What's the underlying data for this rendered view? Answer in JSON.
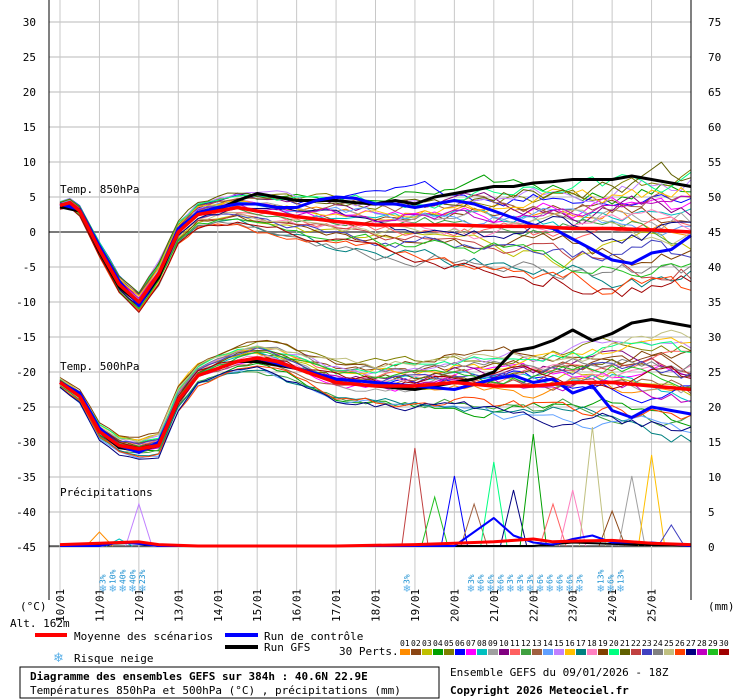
{
  "chart_data": {
    "type": "line",
    "left_axis": {
      "unit": "(°C)",
      "ticks": [
        30,
        25,
        20,
        15,
        10,
        5,
        0,
        -5,
        -10,
        -15,
        -20,
        -25,
        -30,
        -35,
        -40,
        -45
      ]
    },
    "right_axis": {
      "unit": "(mm)",
      "ticks": [
        75,
        70,
        65,
        60,
        55,
        50,
        45,
        40,
        35,
        30,
        25,
        20,
        15,
        10,
        5,
        0
      ]
    },
    "x_labels": [
      "10/01",
      "11/01",
      "12/01",
      "13/01",
      "14/01",
      "15/01",
      "16/01",
      "17/01",
      "18/01",
      "19/01",
      "20/01",
      "21/01",
      "22/01",
      "23/01",
      "24/01",
      "25/01"
    ],
    "altitude": "Alt. 162m",
    "annotations": {
      "t850": "Temp. 850hPa",
      "t500": "Temp. 500hPa",
      "precip": "Précipitations"
    },
    "series_850": {
      "mean": [
        [
          0,
          3.8
        ],
        [
          6,
          4.2
        ],
        [
          12,
          3.0
        ],
        [
          24,
          -2.5
        ],
        [
          36,
          -7.5
        ],
        [
          48,
          -10.0
        ],
        [
          60,
          -6.0
        ],
        [
          72,
          0.0
        ],
        [
          84,
          2.5
        ],
        [
          96,
          3.0
        ],
        [
          108,
          3.5
        ],
        [
          120,
          3.0
        ],
        [
          144,
          2.2
        ],
        [
          168,
          1.5
        ],
        [
          192,
          1.0
        ],
        [
          216,
          1.0
        ],
        [
          240,
          1.0
        ],
        [
          264,
          0.8
        ],
        [
          288,
          0.8
        ],
        [
          312,
          0.5
        ],
        [
          336,
          0.5
        ],
        [
          360,
          0.3
        ],
        [
          384,
          0.0
        ]
      ],
      "control": [
        [
          0,
          4.0
        ],
        [
          12,
          3.2
        ],
        [
          24,
          -2.0
        ],
        [
          36,
          -7.0
        ],
        [
          48,
          -10.5
        ],
        [
          60,
          -6.0
        ],
        [
          72,
          0.5
        ],
        [
          84,
          2.8
        ],
        [
          96,
          3.5
        ],
        [
          108,
          4.0
        ],
        [
          120,
          4.0
        ],
        [
          132,
          3.5
        ],
        [
          144,
          3.5
        ],
        [
          156,
          4.5
        ],
        [
          168,
          5.0
        ],
        [
          180,
          4.8
        ],
        [
          192,
          4.0
        ],
        [
          204,
          4.0
        ],
        [
          216,
          3.5
        ],
        [
          228,
          4.0
        ],
        [
          240,
          4.5
        ],
        [
          252,
          4.0
        ],
        [
          264,
          3.0
        ],
        [
          276,
          2.0
        ],
        [
          288,
          1.0
        ],
        [
          300,
          0.5
        ],
        [
          312,
          -1.0
        ],
        [
          324,
          -2.5
        ],
        [
          336,
          -4.0
        ],
        [
          348,
          -4.5
        ],
        [
          360,
          -3.0
        ],
        [
          372,
          -2.5
        ],
        [
          384,
          -0.5
        ]
      ],
      "gfs": [
        [
          0,
          3.6
        ],
        [
          12,
          3.0
        ],
        [
          24,
          -2.8
        ],
        [
          36,
          -7.8
        ],
        [
          48,
          -10.2
        ],
        [
          60,
          -6.5
        ],
        [
          72,
          0.2
        ],
        [
          84,
          2.6
        ],
        [
          96,
          3.2
        ],
        [
          108,
          4.5
        ],
        [
          120,
          5.5
        ],
        [
          132,
          5.0
        ],
        [
          144,
          4.5
        ],
        [
          156,
          4.5
        ],
        [
          168,
          4.5
        ],
        [
          180,
          4.2
        ],
        [
          192,
          4.0
        ],
        [
          204,
          4.5
        ],
        [
          216,
          4.0
        ],
        [
          228,
          5.0
        ],
        [
          240,
          5.5
        ],
        [
          252,
          6.0
        ],
        [
          264,
          6.5
        ],
        [
          276,
          6.5
        ],
        [
          288,
          7.0
        ],
        [
          300,
          7.2
        ],
        [
          312,
          7.5
        ],
        [
          324,
          7.5
        ],
        [
          336,
          7.5
        ],
        [
          348,
          8.0
        ],
        [
          360,
          7.5
        ],
        [
          372,
          7.0
        ],
        [
          384,
          6.5
        ]
      ]
    },
    "series_500": {
      "mean": [
        [
          0,
          -21.5
        ],
        [
          12,
          -23.5
        ],
        [
          24,
          -28.5
        ],
        [
          36,
          -30.5
        ],
        [
          48,
          -31.0
        ],
        [
          60,
          -30.5
        ],
        [
          72,
          -24.0
        ],
        [
          84,
          -20.5
        ],
        [
          96,
          -19.5
        ],
        [
          108,
          -18.5
        ],
        [
          120,
          -18.0
        ],
        [
          132,
          -18.5
        ],
        [
          144,
          -19.5
        ],
        [
          168,
          -21.5
        ],
        [
          192,
          -22.0
        ],
        [
          216,
          -22.0
        ],
        [
          240,
          -21.5
        ],
        [
          264,
          -22.0
        ],
        [
          288,
          -22.0
        ],
        [
          312,
          -21.5
        ],
        [
          336,
          -21.5
        ],
        [
          360,
          -22.0
        ],
        [
          384,
          -22.5
        ]
      ],
      "control": [
        [
          0,
          -21.5
        ],
        [
          12,
          -23.0
        ],
        [
          24,
          -28.0
        ],
        [
          36,
          -30.5
        ],
        [
          48,
          -31.5
        ],
        [
          60,
          -30.0
        ],
        [
          72,
          -24.0
        ],
        [
          84,
          -20.5
        ],
        [
          96,
          -19.5
        ],
        [
          108,
          -18.5
        ],
        [
          120,
          -18.0
        ],
        [
          144,
          -19.5
        ],
        [
          168,
          -21.0
        ],
        [
          192,
          -21.5
        ],
        [
          216,
          -22.0
        ],
        [
          240,
          -22.5
        ],
        [
          264,
          -21.0
        ],
        [
          276,
          -20.5
        ],
        [
          288,
          -21.5
        ],
        [
          300,
          -21.0
        ],
        [
          312,
          -23.0
        ],
        [
          324,
          -22.0
        ],
        [
          336,
          -25.5
        ],
        [
          348,
          -26.5
        ],
        [
          360,
          -25.0
        ],
        [
          372,
          -25.5
        ],
        [
          384,
          -26.0
        ]
      ],
      "gfs": [
        [
          0,
          -21.5
        ],
        [
          12,
          -23.2
        ],
        [
          24,
          -28.5
        ],
        [
          36,
          -30.8
        ],
        [
          48,
          -31.2
        ],
        [
          60,
          -30.5
        ],
        [
          72,
          -24.2
        ],
        [
          84,
          -20.5
        ],
        [
          96,
          -19.5
        ],
        [
          108,
          -18.5
        ],
        [
          120,
          -18.5
        ],
        [
          144,
          -19.5
        ],
        [
          168,
          -21.5
        ],
        [
          192,
          -22.0
        ],
        [
          216,
          -22.5
        ],
        [
          240,
          -21.5
        ],
        [
          252,
          -21.0
        ],
        [
          264,
          -20.0
        ],
        [
          276,
          -17.0
        ],
        [
          288,
          -16.5
        ],
        [
          300,
          -15.5
        ],
        [
          312,
          -14.0
        ],
        [
          324,
          -15.5
        ],
        [
          336,
          -14.5
        ],
        [
          348,
          -13.0
        ],
        [
          360,
          -12.5
        ],
        [
          372,
          -13.0
        ],
        [
          384,
          -13.5
        ]
      ]
    },
    "precip_mm": {
      "mean": [
        [
          0,
          0.2
        ],
        [
          24,
          0.4
        ],
        [
          36,
          0.5
        ],
        [
          48,
          0.6
        ],
        [
          60,
          0.2
        ],
        [
          84,
          0.0
        ],
        [
          168,
          0.0
        ],
        [
          216,
          0.2
        ],
        [
          240,
          0.4
        ],
        [
          264,
          0.6
        ],
        [
          276,
          0.8
        ],
        [
          288,
          1.0
        ],
        [
          300,
          0.6
        ],
        [
          312,
          0.7
        ],
        [
          336,
          0.8
        ],
        [
          360,
          0.4
        ],
        [
          384,
          0.2
        ]
      ],
      "control": [
        [
          0,
          0.0
        ],
        [
          24,
          0.0
        ],
        [
          36,
          0.5
        ],
        [
          48,
          0.3
        ],
        [
          60,
          0.0
        ],
        [
          240,
          0.0
        ],
        [
          252,
          2.0
        ],
        [
          264,
          4.0
        ],
        [
          276,
          1.5
        ],
        [
          288,
          0.5
        ],
        [
          300,
          0.2
        ],
        [
          312,
          1.0
        ],
        [
          324,
          1.5
        ],
        [
          336,
          0.5
        ],
        [
          360,
          0.5
        ],
        [
          384,
          0.0
        ]
      ],
      "gfs": [
        [
          0,
          0.0
        ],
        [
          48,
          0.5
        ],
        [
          60,
          0.0
        ],
        [
          288,
          0.0
        ],
        [
          312,
          0.5
        ],
        [
          336,
          0.3
        ],
        [
          384,
          0.0
        ]
      ]
    },
    "snow_risk": [
      {
        "day": "11/01",
        "labels": [
          "3%",
          "10%",
          "40%",
          "40%",
          "23%"
        ]
      },
      {
        "day": "19/01",
        "labels": [
          "3%"
        ]
      },
      {
        "day": "21/01",
        "labels": [
          "3%",
          "6%",
          "6%",
          "6%",
          "3%",
          "3%",
          "3%",
          "6%",
          "6%",
          "6%",
          "6%",
          "3%"
        ]
      },
      {
        "day": "24/01",
        "labels": [
          "13%",
          "6%",
          "13%"
        ]
      }
    ]
  },
  "legend": {
    "mean": "Moyenne des scénarios",
    "control": "Run de contrôle",
    "gfs": "Run GFS",
    "snow": "Risque neige",
    "perts_label": "30 Perts.",
    "perts_numbers": [
      "01",
      "02",
      "03",
      "04",
      "05",
      "06",
      "07",
      "08",
      "09",
      "10",
      "11",
      "12",
      "13",
      "14",
      "15",
      "16",
      "17",
      "18",
      "19",
      "20",
      "21",
      "22",
      "23",
      "24",
      "25",
      "26",
      "27",
      "28",
      "29",
      "30"
    ],
    "perts_colors": [
      "#ff8c00",
      "#8b4513",
      "#c0c000",
      "#00a000",
      "#808000",
      "#0000ff",
      "#ff00ff",
      "#00c0c0",
      "#a0a0a0",
      "#800080",
      "#ff6060",
      "#40a040",
      "#a06040",
      "#60a0ff",
      "#c080ff",
      "#ffc000",
      "#008080",
      "#ff80c0",
      "#804000",
      "#00ff80",
      "#606000",
      "#c04040",
      "#4040c0",
      "#808080",
      "#c0c080",
      "#ff4000",
      "#000080",
      "#c000c0",
      "#20c020",
      "#a00000"
    ]
  },
  "footer": {
    "title_line1": "Diagramme des ensembles GEFS sur 384h : 40.6N 22.9E",
    "title_line2": "Températures 850hPa et 500hPa (°C) , précipitations (mm)",
    "ensemble_info": "Ensemble GEFS du 09/01/2026 - 18Z",
    "copyright": "Copyright 2026 Meteociel.fr"
  }
}
